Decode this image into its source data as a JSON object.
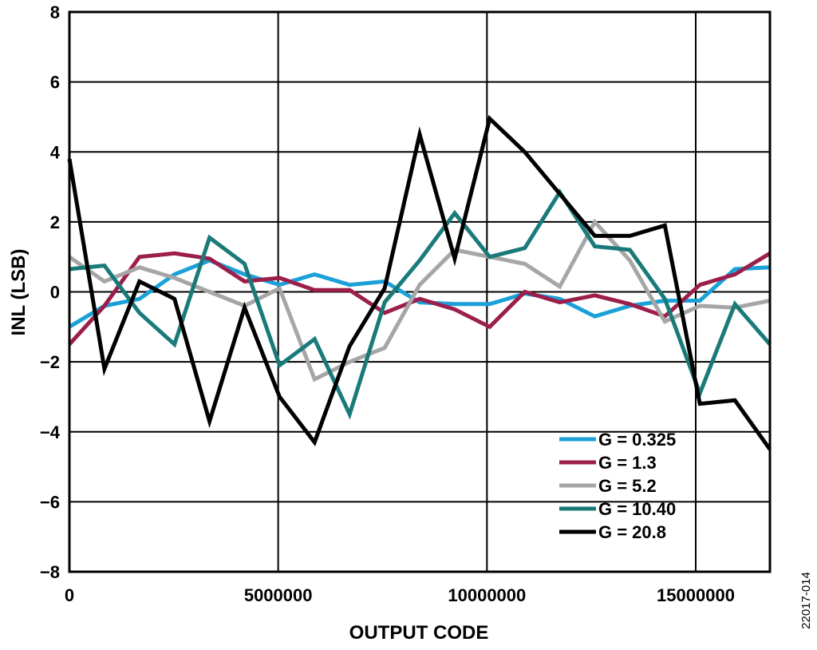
{
  "chart_data": {
    "type": "line",
    "xlabel": "OUTPUT CODE",
    "ylabel": "INL (LSB)",
    "xlim": [
      0,
      16777215
    ],
    "ylim": [
      -8,
      8
    ],
    "x_ticks": [
      0,
      5000000,
      10000000,
      15000000
    ],
    "x_tick_labels": [
      "0",
      "5000000",
      "10000000",
      "15000000"
    ],
    "y_ticks": [
      -8,
      -6,
      -4,
      -2,
      0,
      2,
      4,
      6,
      8
    ],
    "y_tick_labels": [
      "−8",
      "−6",
      "−4",
      "−2",
      "0",
      "2",
      "4",
      "6",
      "8"
    ],
    "grid": true,
    "legend_position": "bottom-right",
    "x": [
      0,
      838861,
      1677722,
      2516582,
      3355443,
      4194304,
      5033165,
      5872026,
      6710886,
      7549747,
      8388608,
      9227469,
      10066330,
      10905190,
      11744051,
      12582912,
      13421773,
      14260634,
      15099494,
      15938355,
      16777215
    ],
    "series": [
      {
        "name": "G = 0.325",
        "color": "#1ba1d8",
        "values": [
          -1.0,
          -0.4,
          -0.2,
          0.5,
          0.9,
          0.5,
          0.2,
          0.5,
          0.2,
          0.3,
          -0.3,
          -0.35,
          -0.35,
          -0.05,
          -0.2,
          -0.7,
          -0.4,
          -0.25,
          -0.25,
          0.65,
          0.7
        ]
      },
      {
        "name": "G = 1.3",
        "color": "#9c1e4a",
        "values": [
          -1.5,
          -0.4,
          1.0,
          1.1,
          0.95,
          0.3,
          0.4,
          0.05,
          0.05,
          -0.6,
          -0.2,
          -0.5,
          -1.0,
          0.0,
          -0.3,
          -0.1,
          -0.35,
          -0.7,
          0.2,
          0.5,
          1.1
        ]
      },
      {
        "name": "G = 5.2",
        "color": "#a6a6a6",
        "values": [
          1.0,
          0.3,
          0.7,
          0.4,
          0.0,
          -0.4,
          0.1,
          -2.5,
          -2.0,
          -1.6,
          0.2,
          1.2,
          1.0,
          0.8,
          0.15,
          2.0,
          0.9,
          -0.85,
          -0.4,
          -0.45,
          -0.25
        ]
      },
      {
        "name": "G = 10.40",
        "color": "#1a7a7a",
        "values": [
          0.65,
          0.75,
          -0.6,
          -1.5,
          1.55,
          0.8,
          -2.1,
          -1.35,
          -3.5,
          -0.3,
          0.9,
          2.25,
          1.0,
          1.25,
          2.85,
          1.3,
          1.2,
          -0.2,
          -2.9,
          -0.35,
          -1.5
        ]
      },
      {
        "name": "G = 20.8",
        "color": "#000000",
        "values": [
          3.8,
          -2.2,
          0.3,
          -0.2,
          -3.7,
          -0.45,
          -3.0,
          -4.3,
          -1.55,
          0.1,
          4.5,
          0.95,
          4.95,
          4.0,
          2.8,
          1.6,
          1.6,
          1.9,
          -3.2,
          -3.1,
          -4.5
        ]
      }
    ]
  },
  "figure_id": "22017-014"
}
